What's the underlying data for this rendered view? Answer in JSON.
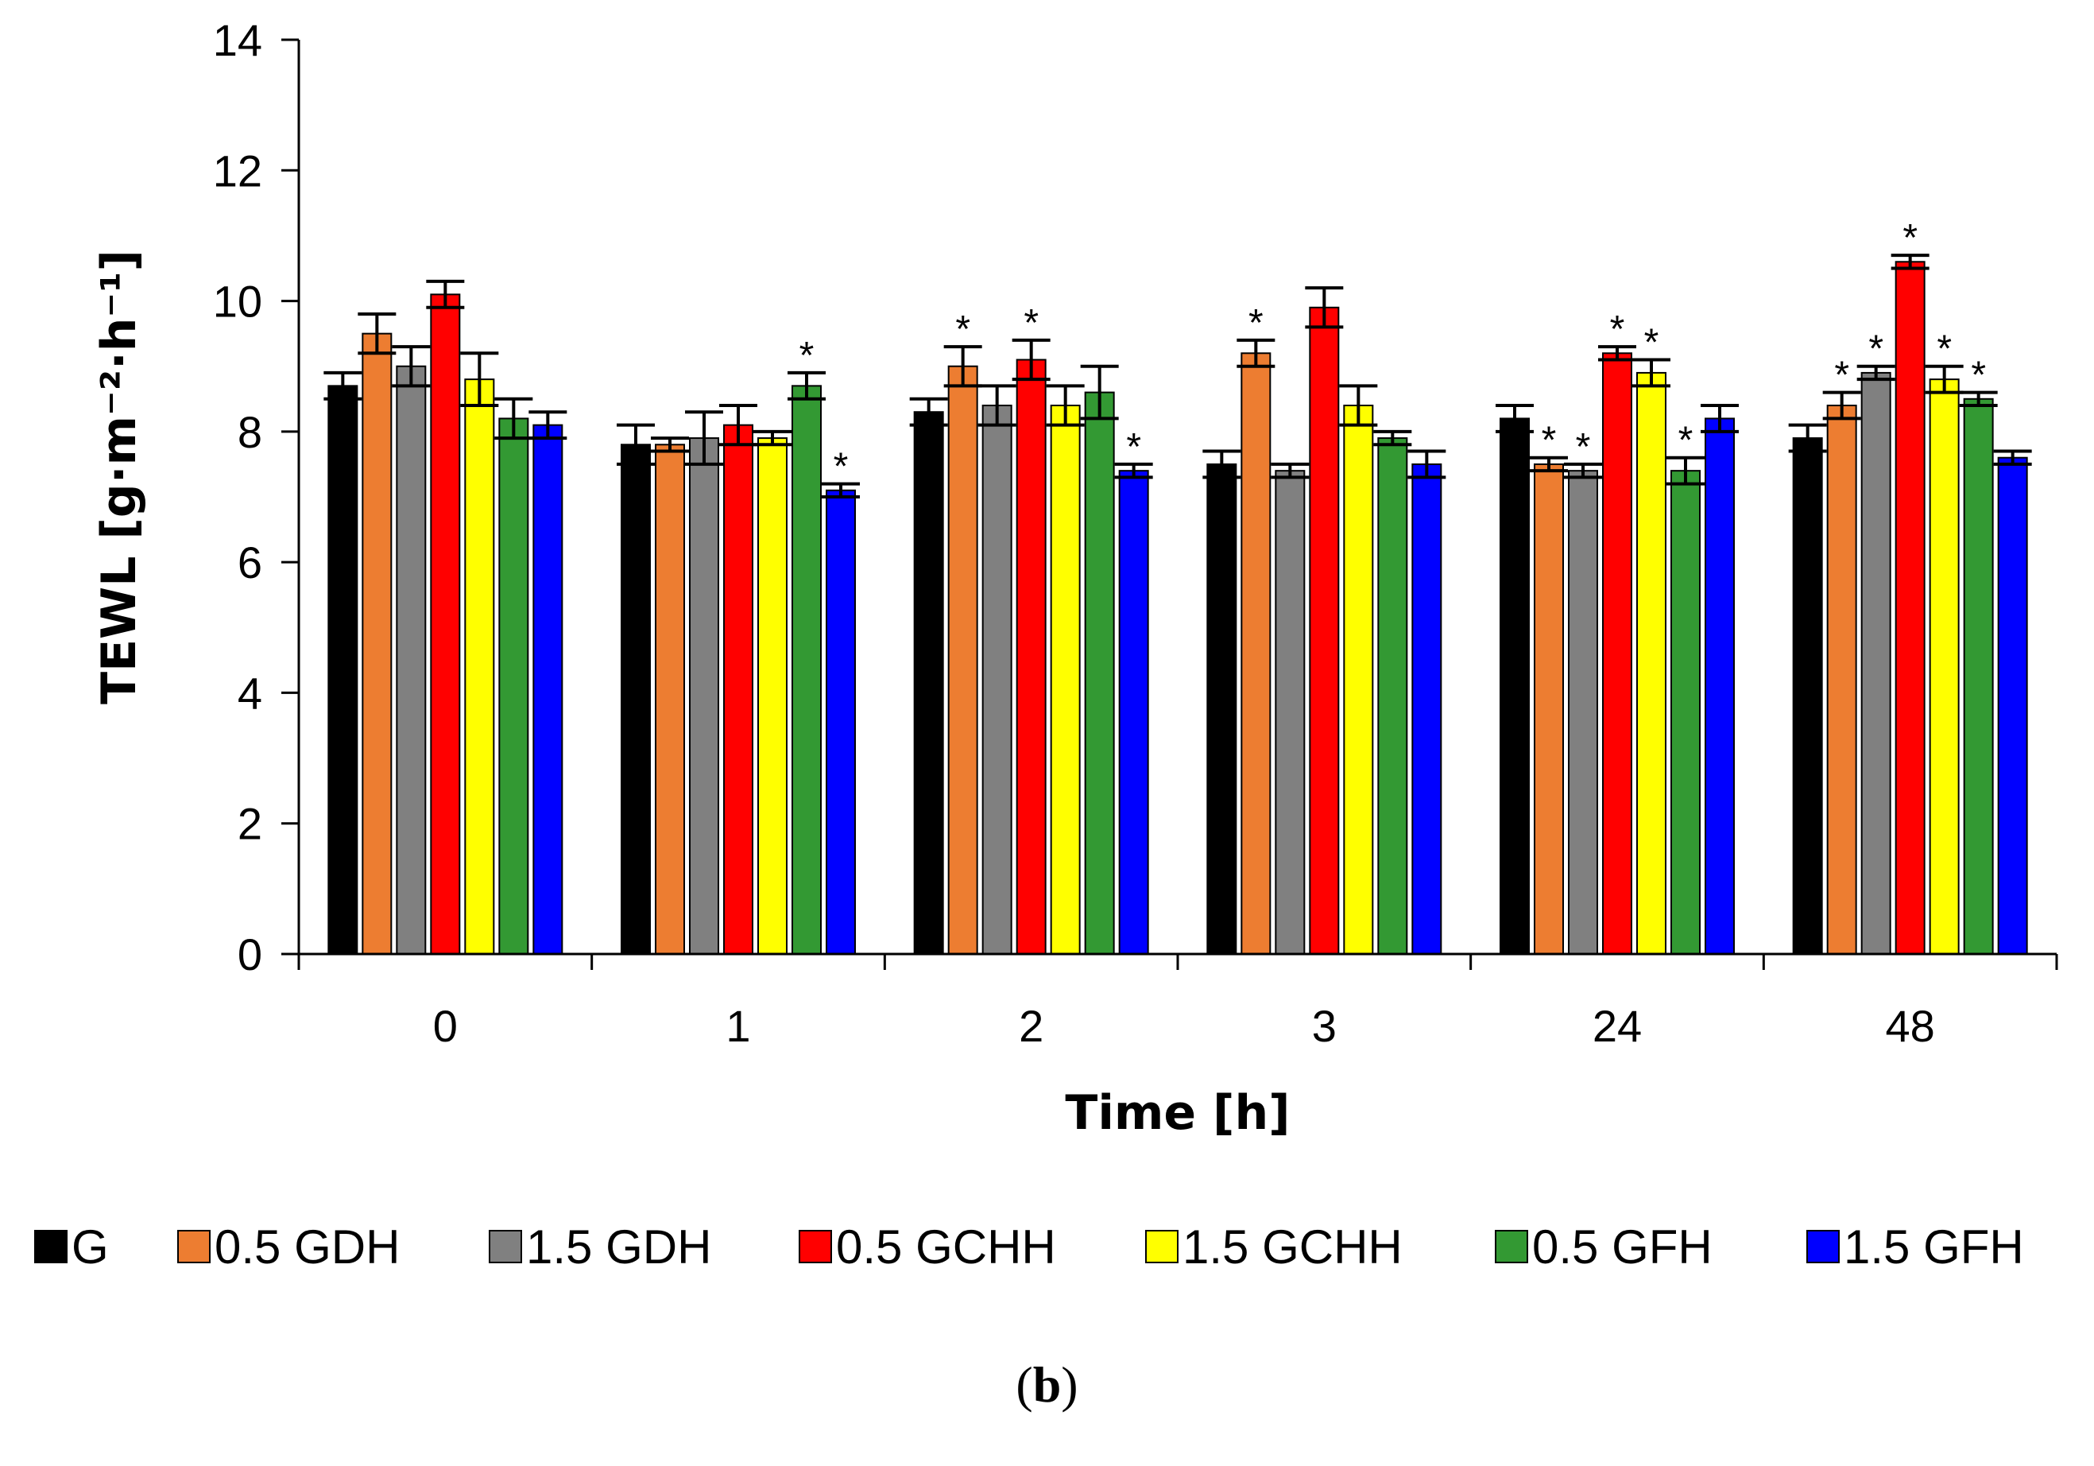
{
  "chart_data": {
    "type": "bar",
    "title": "",
    "xlabel": "Time [h]",
    "ylabel": "TEWL [g·m⁻²·h⁻¹]",
    "ylim": [
      0,
      14
    ],
    "yticks": [
      "0",
      "2",
      "4",
      "6",
      "8",
      "10",
      "12",
      "14"
    ],
    "categories": [
      "0",
      "1",
      "2",
      "3",
      "24",
      "48"
    ],
    "legend_position": "bottom",
    "series": [
      {
        "name": "G",
        "color": "#000000",
        "values": [
          8.7,
          7.8,
          8.3,
          7.5,
          8.2,
          7.9
        ],
        "errors": [
          0.2,
          0.3,
          0.2,
          0.2,
          0.2,
          0.2
        ],
        "significant": [
          false,
          false,
          false,
          false,
          false,
          false
        ]
      },
      {
        "name": "0.5 GDH",
        "color": "#ED7D31",
        "values": [
          9.5,
          7.8,
          9.0,
          9.2,
          7.5,
          8.4
        ],
        "errors": [
          0.3,
          0.1,
          0.3,
          0.2,
          0.1,
          0.2
        ],
        "significant": [
          false,
          false,
          true,
          true,
          true,
          true
        ]
      },
      {
        "name": "1.5 GDH",
        "color": "#808080",
        "values": [
          9.0,
          7.9,
          8.4,
          7.4,
          7.4,
          8.9
        ],
        "errors": [
          0.3,
          0.4,
          0.3,
          0.1,
          0.1,
          0.1
        ],
        "significant": [
          false,
          false,
          false,
          false,
          true,
          true
        ]
      },
      {
        "name": "0.5 GCHH",
        "color": "#FF0000",
        "values": [
          10.1,
          8.1,
          9.1,
          9.9,
          9.2,
          10.6
        ],
        "errors": [
          0.2,
          0.3,
          0.3,
          0.3,
          0.1,
          0.1
        ],
        "significant": [
          false,
          false,
          true,
          false,
          true,
          true
        ]
      },
      {
        "name": "1.5 GCHH",
        "color": "#FFFF00",
        "values": [
          8.8,
          7.9,
          8.4,
          8.4,
          8.9,
          8.8
        ],
        "errors": [
          0.4,
          0.1,
          0.3,
          0.3,
          0.2,
          0.2
        ],
        "significant": [
          false,
          false,
          false,
          false,
          true,
          true
        ]
      },
      {
        "name": "0.5 GFH",
        "color": "#339933",
        "values": [
          8.2,
          8.7,
          8.6,
          7.9,
          7.4,
          8.5
        ],
        "errors": [
          0.3,
          0.2,
          0.4,
          0.1,
          0.2,
          0.1
        ],
        "significant": [
          false,
          true,
          false,
          false,
          true,
          true
        ]
      },
      {
        "name": "1.5 GFH",
        "color": "#0000FF",
        "values": [
          8.1,
          7.1,
          7.4,
          7.5,
          8.2,
          7.6
        ],
        "errors": [
          0.2,
          0.1,
          0.1,
          0.2,
          0.2,
          0.1
        ],
        "significant": [
          false,
          true,
          true,
          false,
          false,
          false
        ]
      }
    ],
    "significance_marker": "*"
  },
  "panel_label": "b"
}
